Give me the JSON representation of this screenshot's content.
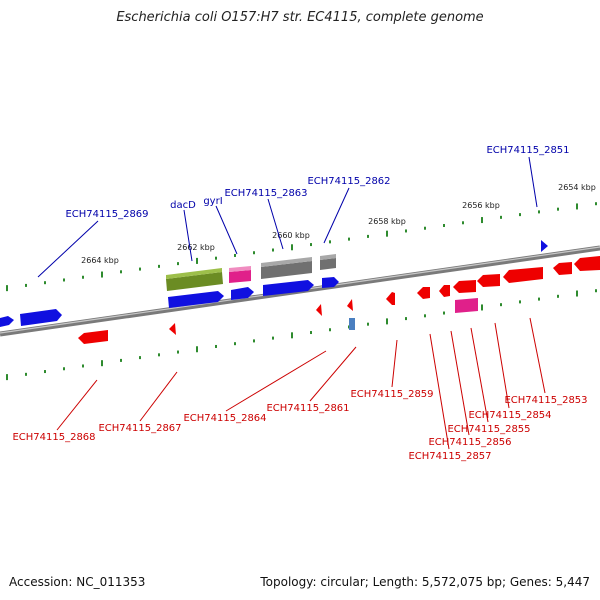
{
  "title": "Escherichia coli O157:H7 str. EC4115, complete genome",
  "footer": {
    "accession": "Accession: NC_011353",
    "summary": "Topology: circular; Length: 5,572,075 bp; Genes: 5,447"
  },
  "colors": {
    "backbone": "#8c8c8c",
    "tick": "#2e8b2e",
    "forward_label": "#0000aa",
    "reverse_label": "#cc0000",
    "forward_gene": "#1010e0",
    "reverse_gene": "#ee0000",
    "pink_gene": "#e0208a",
    "olive_gene": "#6b8c23",
    "gray_gene": "#707070"
  },
  "tick_labels": [
    "2664 kbp",
    "2662 kbp",
    "2660 kbp",
    "2658 kbp",
    "2656 kbp",
    "2654 kbp"
  ],
  "top_labels": [
    "ECH74115_2869",
    "dacD",
    "gyrI",
    "ECH74115_2863",
    "ECH74115_2862",
    "ECH74115_2851"
  ],
  "bottom_labels": [
    "ECH74115_2868",
    "ECH74115_2867",
    "ECH74115_2864",
    "ECH74115_2861",
    "ECH74115_2859",
    "ECH74115_2857",
    "ECH74115_2856",
    "ECH74115_2855",
    "ECH74115_2854",
    "ECH74115_2853"
  ]
}
